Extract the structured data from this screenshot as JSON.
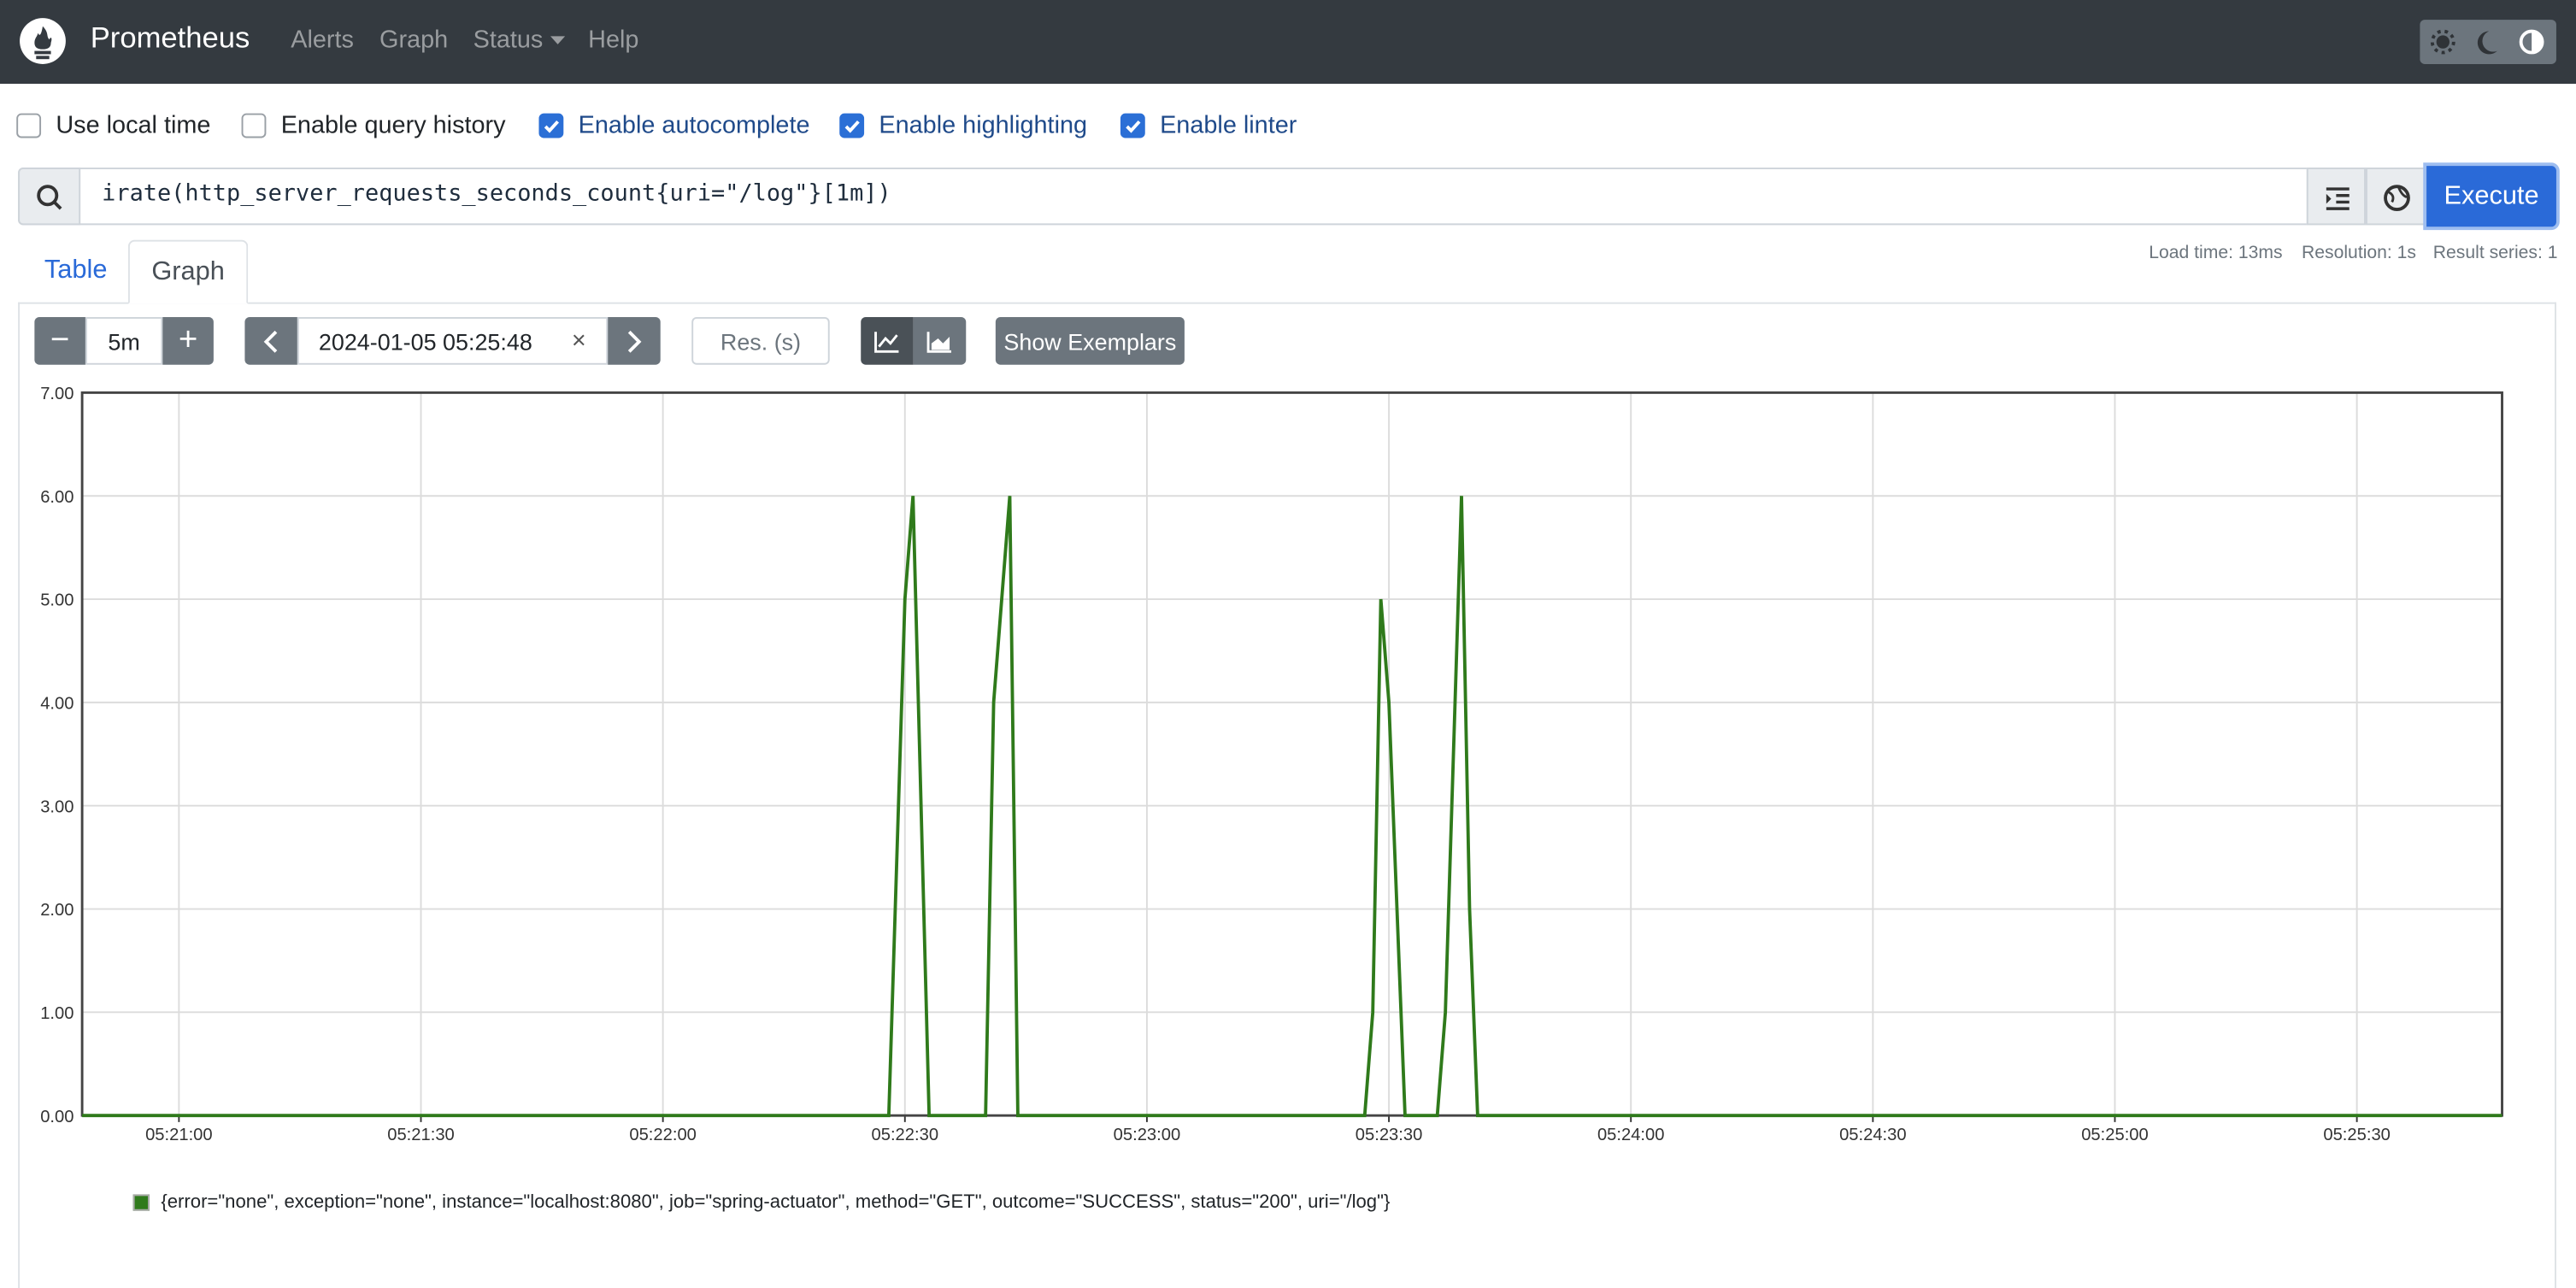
{
  "navbar": {
    "brand": "Prometheus",
    "links": [
      "Alerts",
      "Graph",
      "Status",
      "Help"
    ]
  },
  "options": [
    {
      "label": "Use local time",
      "checked": false
    },
    {
      "label": "Enable query history",
      "checked": false
    },
    {
      "label": "Enable autocomplete",
      "checked": true
    },
    {
      "label": "Enable highlighting",
      "checked": true
    },
    {
      "label": "Enable linter",
      "checked": true
    }
  ],
  "query": "irate(http_server_requests_seconds_count{uri=\"/log\"}[1m])",
  "execute": "Execute",
  "tabs": [
    "Table",
    "Graph"
  ],
  "stats": [
    "Load time: 13ms",
    "Resolution: 1s",
    "Result series: 1"
  ],
  "controls": {
    "range": "5m",
    "end_time": "2024-01-05 05:25:48",
    "resolution_placeholder": "Res. (s)",
    "exemplars": "Show Exemplars"
  },
  "chart_data": {
    "type": "line",
    "x": [
      "05:20:48",
      "05:22:28",
      "05:22:30",
      "05:22:31",
      "05:22:33",
      "05:22:40",
      "05:22:41",
      "05:22:43",
      "05:22:44",
      "05:23:27",
      "05:23:28",
      "05:23:29",
      "05:23:30",
      "05:23:32",
      "05:23:36",
      "05:23:37",
      "05:23:39",
      "05:23:40",
      "05:23:41",
      "05:25:48"
    ],
    "series": [
      {
        "name": "{error=\"none\", exception=\"none\", instance=\"localhost:8080\", job=\"spring-actuator\", method=\"GET\", outcome=\"SUCCESS\", status=\"200\", uri=\"/log\"}",
        "color": "#2f7a1b",
        "values": [
          0,
          0,
          5,
          6,
          0,
          0,
          4,
          6,
          0,
          0,
          1,
          5,
          4,
          0,
          0,
          1,
          6,
          2,
          0,
          0
        ]
      }
    ],
    "xlim": [
      "05:20:48",
      "05:25:48"
    ],
    "xticks": [
      "05:21:00",
      "05:21:30",
      "05:22:00",
      "05:22:30",
      "05:23:00",
      "05:23:30",
      "05:24:00",
      "05:24:30",
      "05:25:00",
      "05:25:30"
    ],
    "ylim": [
      0,
      7
    ],
    "yticks": [
      {
        "value": 0,
        "label": "0.00"
      },
      {
        "value": 1,
        "label": "1.00"
      },
      {
        "value": 2,
        "label": "2.00"
      },
      {
        "value": 3,
        "label": "3.00"
      },
      {
        "value": 4,
        "label": "4.00"
      },
      {
        "value": 5,
        "label": "5.00"
      },
      {
        "value": 6,
        "label": "6.00"
      },
      {
        "value": 7,
        "label": "7.00"
      }
    ],
    "grid": true
  }
}
